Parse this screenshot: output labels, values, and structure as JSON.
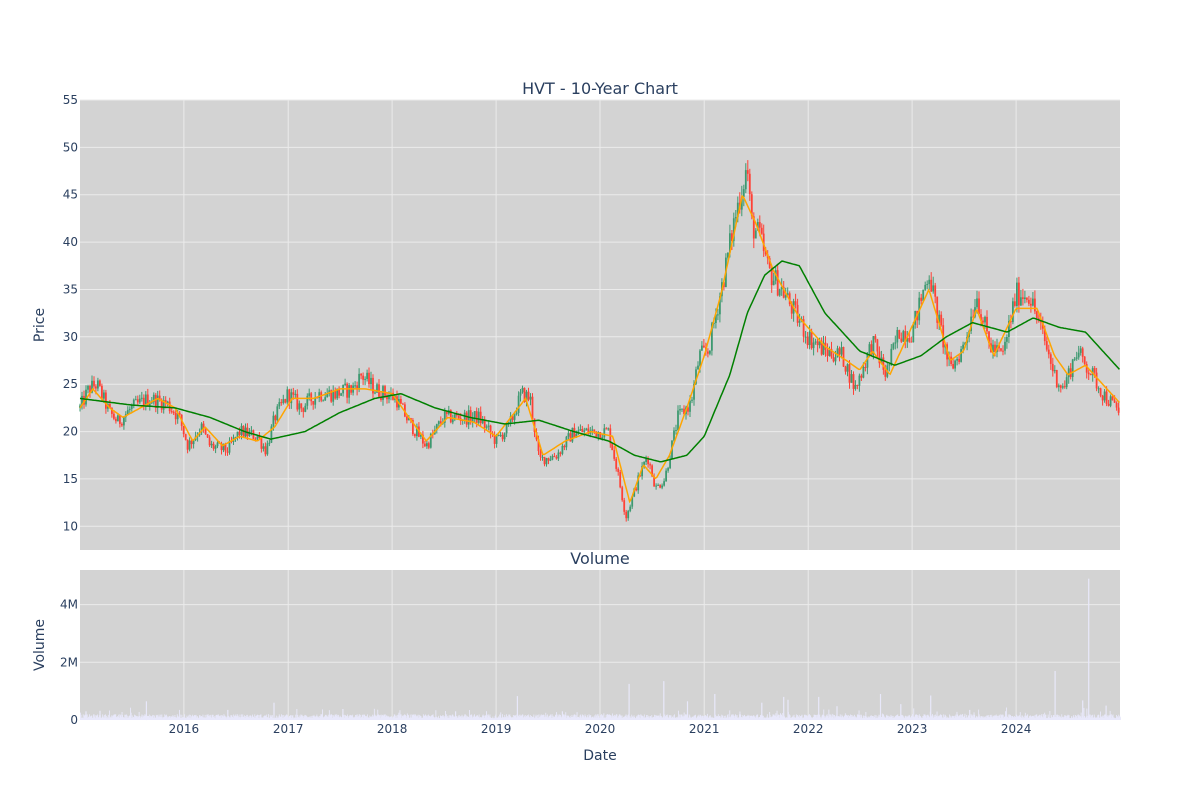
{
  "chart_data": [
    {
      "type": "candlestick",
      "title": "HVT - 10-Year Chart",
      "xlabel": "",
      "ylabel": "Price",
      "xlim": [
        "2015-01-01",
        "2024-12-31"
      ],
      "ylim": [
        7.5,
        55
      ],
      "yticks": [
        10,
        15,
        20,
        25,
        30,
        35,
        40,
        45,
        50,
        55
      ],
      "grid": true,
      "legend": "none",
      "colors": {
        "background": "#d3d3d3",
        "grid": "#ebebeb",
        "up": "#3d9970",
        "down": "#ff4136",
        "ma_short": "#ffa500",
        "ma_long": "#008000"
      },
      "price_path": [
        [
          "2015-01-01",
          22.5
        ],
        [
          "2015-02-01",
          24.5
        ],
        [
          "2015-03-01",
          25.0
        ],
        [
          "2015-04-15",
          22.0
        ],
        [
          "2015-05-15",
          21.0
        ],
        [
          "2015-07-01",
          22.5
        ],
        [
          "2015-09-01",
          23.5
        ],
        [
          "2015-11-01",
          23.0
        ],
        [
          "2015-12-15",
          21.5
        ],
        [
          "2016-01-15",
          18.5
        ],
        [
          "2016-03-01",
          20.5
        ],
        [
          "2016-04-01",
          18.5
        ],
        [
          "2016-06-01",
          18.0
        ],
        [
          "2016-07-15",
          20.0
        ],
        [
          "2016-09-15",
          19.5
        ],
        [
          "2016-10-15",
          18.0
        ],
        [
          "2016-11-15",
          21.5
        ],
        [
          "2017-01-01",
          24.0
        ],
        [
          "2017-02-15",
          22.5
        ],
        [
          "2017-04-15",
          24.0
        ],
        [
          "2017-06-15",
          24.0
        ],
        [
          "2017-08-15",
          24.5
        ],
        [
          "2017-09-15",
          26.0
        ],
        [
          "2017-11-01",
          24.5
        ],
        [
          "2018-01-15",
          23.5
        ],
        [
          "2018-03-01",
          21.0
        ],
        [
          "2018-05-01",
          18.5
        ],
        [
          "2018-07-01",
          21.5
        ],
        [
          "2018-09-01",
          21.5
        ],
        [
          "2018-11-01",
          21.5
        ],
        [
          "2019-01-01",
          19.0
        ],
        [
          "2019-02-15",
          20.5
        ],
        [
          "2019-04-01",
          24.0
        ],
        [
          "2019-05-01",
          23.5
        ],
        [
          "2019-06-01",
          17.0
        ],
        [
          "2019-08-01",
          17.5
        ],
        [
          "2019-10-01",
          20.0
        ],
        [
          "2019-12-01",
          20.0
        ],
        [
          "2020-02-01",
          20.0
        ],
        [
          "2020-03-01",
          16.0
        ],
        [
          "2020-04-01",
          11.0
        ],
        [
          "2020-05-15",
          15.0
        ],
        [
          "2020-06-15",
          17.5
        ],
        [
          "2020-07-15",
          14.0
        ],
        [
          "2020-08-15",
          15.0
        ],
        [
          "2020-10-01",
          21.5
        ],
        [
          "2020-11-15",
          23.0
        ],
        [
          "2020-12-15",
          28.0
        ],
        [
          "2021-01-15",
          28.5
        ],
        [
          "2021-02-15",
          33.0
        ],
        [
          "2021-03-15",
          37.0
        ],
        [
          "2021-04-15",
          42.0
        ],
        [
          "2021-05-15",
          46.0
        ],
        [
          "2021-06-01",
          48.0
        ],
        [
          "2021-06-15",
          42.0
        ],
        [
          "2021-07-15",
          40.5
        ],
        [
          "2021-08-15",
          37.0
        ],
        [
          "2021-10-01",
          35.0
        ],
        [
          "2021-11-15",
          32.5
        ],
        [
          "2022-01-01",
          30.0
        ],
        [
          "2022-03-01",
          28.5
        ],
        [
          "2022-05-01",
          28.0
        ],
        [
          "2022-06-15",
          24.5
        ],
        [
          "2022-08-15",
          29.5
        ],
        [
          "2022-10-01",
          26.0
        ],
        [
          "2022-11-15",
          30.5
        ],
        [
          "2023-01-01",
          30.5
        ],
        [
          "2023-03-01",
          37.0
        ],
        [
          "2023-04-01",
          32.0
        ],
        [
          "2023-05-15",
          26.5
        ],
        [
          "2023-07-01",
          29.0
        ],
        [
          "2023-08-15",
          34.5
        ],
        [
          "2023-10-01",
          29.0
        ],
        [
          "2023-11-15",
          28.0
        ],
        [
          "2024-01-01",
          34.5
        ],
        [
          "2024-02-15",
          34.5
        ],
        [
          "2024-04-01",
          30.5
        ],
        [
          "2024-05-15",
          26.0
        ],
        [
          "2024-06-15",
          24.5
        ],
        [
          "2024-08-01",
          28.5
        ],
        [
          "2024-09-15",
          26.5
        ],
        [
          "2024-11-01",
          24.0
        ],
        [
          "2024-12-31",
          22.0
        ]
      ],
      "ma_short_path": [
        [
          "2015-01-01",
          22.5
        ],
        [
          "2015-02-15",
          24.5
        ],
        [
          "2015-04-15",
          22.5
        ],
        [
          "2015-06-01",
          21.5
        ],
        [
          "2015-08-01",
          22.5
        ],
        [
          "2015-10-01",
          23.5
        ],
        [
          "2015-12-01",
          22.5
        ],
        [
          "2016-02-01",
          19.0
        ],
        [
          "2016-03-15",
          20.5
        ],
        [
          "2016-05-15",
          18.5
        ],
        [
          "2016-07-15",
          19.5
        ],
        [
          "2016-09-15",
          19.0
        ],
        [
          "2016-11-15",
          20.5
        ],
        [
          "2017-01-15",
          23.5
        ],
        [
          "2017-04-01",
          23.5
        ],
        [
          "2017-07-01",
          24.5
        ],
        [
          "2017-10-01",
          24.5
        ],
        [
          "2018-01-01",
          24.0
        ],
        [
          "2018-03-01",
          21.5
        ],
        [
          "2018-05-01",
          19.0
        ],
        [
          "2018-07-15",
          21.5
        ],
        [
          "2018-10-15",
          21.0
        ],
        [
          "2019-01-01",
          19.5
        ],
        [
          "2019-04-15",
          23.5
        ],
        [
          "2019-06-15",
          17.5
        ],
        [
          "2019-09-01",
          19.0
        ],
        [
          "2019-12-01",
          20.0
        ],
        [
          "2020-02-15",
          19.5
        ],
        [
          "2020-04-15",
          12.5
        ],
        [
          "2020-06-01",
          16.5
        ],
        [
          "2020-07-15",
          15.0
        ],
        [
          "2020-09-01",
          17.5
        ],
        [
          "2020-11-01",
          22.5
        ],
        [
          "2021-01-01",
          28.0
        ],
        [
          "2021-03-01",
          34.5
        ],
        [
          "2021-05-15",
          45.0
        ],
        [
          "2021-07-01",
          42.0
        ],
        [
          "2021-09-01",
          37.0
        ],
        [
          "2021-12-01",
          32.0
        ],
        [
          "2022-03-01",
          29.0
        ],
        [
          "2022-05-15",
          27.5
        ],
        [
          "2022-07-01",
          26.5
        ],
        [
          "2022-08-15",
          28.5
        ],
        [
          "2022-10-15",
          26.0
        ],
        [
          "2022-12-15",
          30.0
        ],
        [
          "2023-03-01",
          35.0
        ],
        [
          "2023-05-15",
          27.5
        ],
        [
          "2023-07-01",
          28.5
        ],
        [
          "2023-08-15",
          33.0
        ],
        [
          "2023-10-15",
          28.0
        ],
        [
          "2024-01-01",
          33.0
        ],
        [
          "2024-03-15",
          33.0
        ],
        [
          "2024-05-15",
          28.0
        ],
        [
          "2024-07-01",
          26.0
        ],
        [
          "2024-09-01",
          27.0
        ],
        [
          "2024-11-15",
          24.5
        ],
        [
          "2024-12-31",
          23.0
        ]
      ],
      "ma_long_path": [
        [
          "2015-01-01",
          23.5
        ],
        [
          "2015-07-01",
          22.8
        ],
        [
          "2015-12-01",
          22.5
        ],
        [
          "2016-04-01",
          21.5
        ],
        [
          "2016-08-01",
          20.0
        ],
        [
          "2016-11-01",
          19.2
        ],
        [
          "2017-03-01",
          20.0
        ],
        [
          "2017-07-01",
          22.0
        ],
        [
          "2017-11-01",
          23.5
        ],
        [
          "2018-02-01",
          24.0
        ],
        [
          "2018-06-01",
          22.5
        ],
        [
          "2018-10-01",
          21.5
        ],
        [
          "2019-02-01",
          20.8
        ],
        [
          "2019-06-01",
          21.2
        ],
        [
          "2019-10-01",
          20.0
        ],
        [
          "2020-02-01",
          19.0
        ],
        [
          "2020-05-01",
          17.5
        ],
        [
          "2020-08-01",
          16.8
        ],
        [
          "2020-11-01",
          17.5
        ],
        [
          "2021-01-01",
          19.5
        ],
        [
          "2021-04-01",
          26.0
        ],
        [
          "2021-06-01",
          32.5
        ],
        [
          "2021-08-01",
          36.5
        ],
        [
          "2021-10-01",
          38.0
        ],
        [
          "2021-12-01",
          37.5
        ],
        [
          "2022-03-01",
          32.5
        ],
        [
          "2022-07-01",
          28.5
        ],
        [
          "2022-11-01",
          27.0
        ],
        [
          "2023-02-01",
          28.0
        ],
        [
          "2023-05-01",
          30.0
        ],
        [
          "2023-08-01",
          31.5
        ],
        [
          "2023-12-01",
          30.5
        ],
        [
          "2024-03-01",
          32.0
        ],
        [
          "2024-06-01",
          31.0
        ],
        [
          "2024-09-01",
          30.5
        ],
        [
          "2024-12-31",
          26.5
        ]
      ]
    },
    {
      "type": "bar",
      "title": "Volume",
      "xlabel": "Date",
      "ylabel": "Volume",
      "xlim": [
        "2015-01-01",
        "2024-12-31"
      ],
      "ylim": [
        0,
        5200000
      ],
      "yticks": [
        0,
        2000000,
        4000000
      ],
      "ytick_labels": [
        "0",
        "2M",
        "4M"
      ],
      "xticks": [
        "2016-01-01",
        "2017-01-01",
        "2018-01-01",
        "2019-01-01",
        "2020-01-01",
        "2021-01-01",
        "2022-01-01",
        "2023-01-01",
        "2024-01-01"
      ],
      "xtick_labels": [
        "2016",
        "2017",
        "2018",
        "2019",
        "2020",
        "2021",
        "2022",
        "2023",
        "2024"
      ],
      "grid": true,
      "color": "#e8e8fa",
      "spikes": [
        [
          "2015-01-20",
          300000
        ],
        [
          "2015-03-10",
          320000
        ],
        [
          "2015-08-20",
          650000
        ],
        [
          "2016-06-01",
          350000
        ],
        [
          "2016-11-10",
          600000
        ],
        [
          "2017-07-10",
          380000
        ],
        [
          "2018-08-10",
          300000
        ],
        [
          "2019-03-15",
          830000
        ],
        [
          "2019-08-20",
          300000
        ],
        [
          "2020-04-10",
          1250000
        ],
        [
          "2020-08-10",
          1350000
        ],
        [
          "2020-11-01",
          650000
        ],
        [
          "2021-02-05",
          900000
        ],
        [
          "2021-07-20",
          600000
        ],
        [
          "2021-10-05",
          800000
        ],
        [
          "2021-10-20",
          700000
        ],
        [
          "2022-02-05",
          800000
        ],
        [
          "2022-04-10",
          480000
        ],
        [
          "2022-09-10",
          900000
        ],
        [
          "2022-11-20",
          550000
        ],
        [
          "2023-03-05",
          850000
        ],
        [
          "2023-07-20",
          350000
        ],
        [
          "2024-05-15",
          1700000
        ],
        [
          "2024-08-20",
          680000
        ],
        [
          "2024-09-10",
          4900000
        ],
        [
          "2024-11-10",
          500000
        ]
      ]
    }
  ]
}
